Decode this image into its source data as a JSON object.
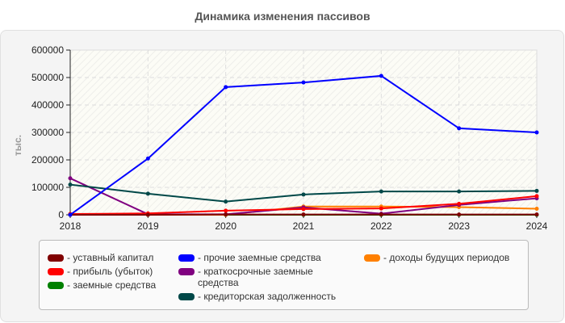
{
  "title": "Динамика изменения пассивов",
  "chart_data": {
    "type": "line",
    "title": "Динамика изменения пассивов",
    "xlabel": "",
    "ylabel": "тыс.",
    "x": [
      "2018",
      "2019",
      "2020",
      "2021",
      "2022",
      "2023",
      "2024"
    ],
    "ylim": [
      0,
      600000
    ],
    "yticks": [
      "0",
      "100000",
      "200000",
      "300000",
      "400000",
      "500000",
      "600000"
    ],
    "grid": true,
    "legend_position": "bottom",
    "series": [
      {
        "name": "уставный капитал",
        "color": "#800000",
        "values": [
          0,
          0,
          1000,
          1000,
          1000,
          1000,
          1000
        ]
      },
      {
        "name": "прибыль (убыток)",
        "color": "#ff0000",
        "values": [
          3000,
          5000,
          15000,
          21000,
          23000,
          40000,
          68000
        ]
      },
      {
        "name": "заемные средства",
        "color": "#008000",
        "values": [
          0,
          0,
          0,
          0,
          0,
          0,
          0
        ]
      },
      {
        "name": "прочие заемные средства",
        "color": "#0000ff",
        "values": [
          0,
          205000,
          465000,
          482000,
          506000,
          315000,
          300000
        ]
      },
      {
        "name": "краткосрочные заемные средства",
        "color": "#800080",
        "values": [
          133000,
          2000,
          2000,
          27000,
          4000,
          36000,
          60000
        ]
      },
      {
        "name": "кредиторская задолженность",
        "color": "#004848",
        "values": [
          110000,
          77000,
          48000,
          74000,
          85000,
          85000,
          87000
        ]
      },
      {
        "name": "доходы будущих периодов",
        "color": "#ff8000",
        "values": [
          0,
          0,
          0,
          30000,
          30000,
          28000,
          22000
        ]
      }
    ]
  },
  "legend": {
    "col1": [
      {
        "label": "- уставный капитал",
        "color": "#800000"
      },
      {
        "label": "- прибыль (убыток)",
        "color": "#ff0000"
      },
      {
        "label": "- заемные средства",
        "color": "#008000"
      }
    ],
    "col2": [
      {
        "label": "- прочие заемные средства",
        "color": "#0000ff"
      },
      {
        "label": "- краткосрочные заемные средства",
        "color": "#800080"
      },
      {
        "label": "- кредиторская задолженность",
        "color": "#004848"
      }
    ],
    "col3": [
      {
        "label": "- доходы будущих периодов",
        "color": "#ff8000"
      }
    ]
  }
}
